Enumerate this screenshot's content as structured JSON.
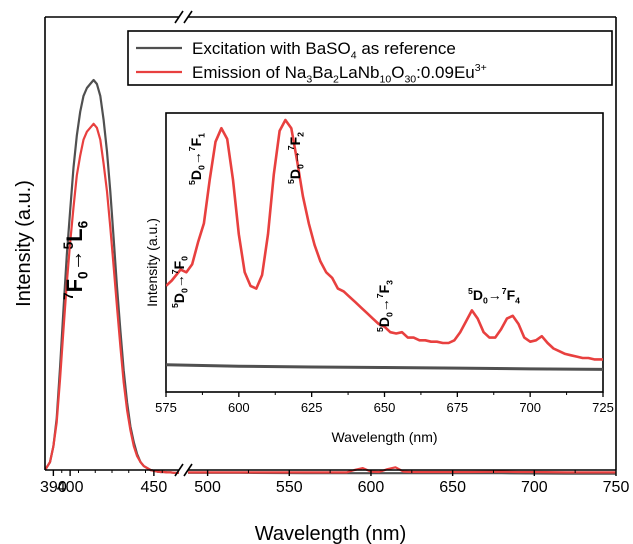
{
  "chart_data": [
    {
      "type": "line",
      "xlabel": "Wavelength (nm)",
      "ylabel": "Intensity (a.u.)",
      "x_tick_labels_left": [
        "390",
        "400",
        "450"
      ],
      "x_tick_labels_right": [
        "500",
        "550",
        "600",
        "650",
        "700",
        "750"
      ],
      "xlim_left": [
        385,
        465
      ],
      "xlim_right": [
        488,
        750
      ],
      "axis_break": true,
      "legend": {
        "placement": "top-right",
        "entries": [
          {
            "text": "Excitation with BaSO",
            "sub": "4",
            "tail": " as reference",
            "color": "#505050"
          },
          {
            "parts": [
              "Emission of Na",
              "3",
              "Ba",
              "2",
              "LaNb",
              "10",
              "O",
              "30",
              ":0.09Eu",
              "3+"
            ],
            "color": "#e8403f"
          }
        ]
      },
      "annotation": {
        "main": "7F0→5L6",
        "parts": [
          "7",
          "F",
          "0",
          "→",
          "5",
          "L",
          "6"
        ]
      },
      "series": [
        {
          "color": "#505050",
          "x": [
            385,
            388,
            390,
            392,
            394,
            396,
            398,
            400,
            402,
            404,
            406,
            408,
            410,
            412,
            414,
            416,
            418,
            420,
            422,
            424,
            426,
            428,
            430,
            432,
            434,
            436,
            438,
            440,
            442,
            444,
            446,
            448,
            450,
            452,
            454,
            456,
            458,
            460,
            462,
            465
          ],
          "y": [
            0.02,
            0.04,
            0.08,
            0.15,
            0.28,
            0.42,
            0.56,
            0.67,
            0.78,
            0.86,
            0.92,
            0.96,
            0.98,
            0.99,
            1.0,
            0.99,
            0.96,
            0.9,
            0.82,
            0.72,
            0.6,
            0.48,
            0.37,
            0.27,
            0.19,
            0.13,
            0.09,
            0.06,
            0.04,
            0.03,
            0.025,
            0.02,
            0.018,
            0.016,
            0.015,
            0.015,
            0.014,
            0.014,
            0.013,
            0.013
          ]
        },
        {
          "color": "#e8403f",
          "x": [
            385,
            388,
            390,
            392,
            394,
            396,
            398,
            400,
            402,
            404,
            406,
            408,
            410,
            412,
            414,
            416,
            418,
            420,
            422,
            424,
            426,
            428,
            430,
            432,
            434,
            436,
            438,
            440,
            442,
            444,
            446,
            448,
            450,
            452,
            454,
            456,
            458,
            460,
            462,
            465
          ],
          "y": [
            0.02,
            0.04,
            0.08,
            0.14,
            0.25,
            0.37,
            0.49,
            0.59,
            0.68,
            0.76,
            0.81,
            0.85,
            0.87,
            0.88,
            0.89,
            0.88,
            0.85,
            0.79,
            0.72,
            0.63,
            0.53,
            0.43,
            0.33,
            0.24,
            0.17,
            0.12,
            0.08,
            0.055,
            0.04,
            0.03,
            0.025,
            0.02,
            0.018,
            0.016,
            0.015,
            0.015,
            0.014,
            0.014,
            0.013,
            0.013
          ]
        },
        {
          "color": "#505050",
          "x": [
            488,
            520,
            560,
            600,
            640,
            680,
            720,
            750
          ],
          "y": [
            0.013,
            0.013,
            0.012,
            0.012,
            0.012,
            0.012,
            0.011,
            0.011
          ]
        },
        {
          "color": "#e8403f",
          "x": [
            488,
            520,
            560,
            585,
            590,
            595,
            600,
            605,
            610,
            615,
            620,
            625,
            640,
            660,
            680,
            690,
            700,
            720,
            750
          ],
          "y": [
            0.014,
            0.014,
            0.014,
            0.014,
            0.02,
            0.025,
            0.016,
            0.015,
            0.022,
            0.027,
            0.016,
            0.015,
            0.015,
            0.015,
            0.016,
            0.015,
            0.015,
            0.014,
            0.014
          ]
        }
      ]
    },
    {
      "type": "line",
      "placement": "inset",
      "xlabel": "Wavelength (nm)",
      "ylabel": "Intensity (a.u.)",
      "xlim": [
        575,
        725
      ],
      "x_tick_labels": [
        "575",
        "600",
        "625",
        "650",
        "675",
        "700",
        "725"
      ],
      "annotations": [
        {
          "parts": [
            "5",
            "D",
            "0",
            "→",
            "7",
            "F",
            "0"
          ],
          "x": 580,
          "y": 0.45,
          "rotate": -90
        },
        {
          "parts": [
            "5",
            "D",
            "0",
            "→",
            "7",
            "F",
            "1"
          ],
          "x": 591,
          "y": 0.78,
          "rotate": -90
        },
        {
          "parts": [
            "5",
            "D",
            "0",
            "→",
            "7",
            "F",
            "2"
          ],
          "x": 620,
          "y": 0.82,
          "rotate": -90
        },
        {
          "parts": [
            "5",
            "D",
            "0",
            "→",
            "7",
            "F",
            "3"
          ],
          "x": 651,
          "y": 0.24,
          "rotate": -90
        },
        {
          "parts": [
            "5",
            "D",
            "0",
            "→",
            "7",
            "F",
            "4"
          ],
          "x": 691,
          "y": 0.36,
          "rotate": 0
        }
      ],
      "series": [
        {
          "color": "#505050",
          "x": [
            575,
            600,
            625,
            650,
            675,
            700,
            725
          ],
          "y": [
            0.1,
            0.095,
            0.092,
            0.09,
            0.088,
            0.085,
            0.083
          ]
        },
        {
          "color": "#e8403f",
          "x": [
            575,
            577,
            580,
            582,
            584,
            586,
            588,
            590,
            592,
            594,
            596,
            598,
            600,
            602,
            604,
            606,
            608,
            610,
            612,
            614,
            616,
            618,
            620,
            622,
            624,
            626,
            628,
            630,
            632,
            634,
            636,
            638,
            640,
            642,
            644,
            646,
            648,
            650,
            652,
            654,
            656,
            658,
            660,
            662,
            664,
            666,
            668,
            670,
            672,
            674,
            676,
            678,
            680,
            682,
            684,
            686,
            688,
            690,
            692,
            694,
            696,
            698,
            700,
            702,
            704,
            706,
            708,
            710,
            712,
            714,
            716,
            718,
            720,
            722,
            725
          ],
          "y": [
            0.39,
            0.41,
            0.45,
            0.44,
            0.47,
            0.55,
            0.62,
            0.78,
            0.92,
            0.97,
            0.93,
            0.78,
            0.58,
            0.44,
            0.39,
            0.38,
            0.43,
            0.58,
            0.8,
            0.96,
            1.0,
            0.97,
            0.85,
            0.72,
            0.62,
            0.54,
            0.48,
            0.44,
            0.42,
            0.38,
            0.37,
            0.35,
            0.33,
            0.31,
            0.29,
            0.27,
            0.25,
            0.24,
            0.22,
            0.215,
            0.22,
            0.2,
            0.2,
            0.19,
            0.19,
            0.185,
            0.185,
            0.18,
            0.18,
            0.19,
            0.22,
            0.26,
            0.3,
            0.27,
            0.22,
            0.2,
            0.2,
            0.23,
            0.27,
            0.28,
            0.25,
            0.2,
            0.185,
            0.19,
            0.205,
            0.18,
            0.16,
            0.15,
            0.14,
            0.135,
            0.13,
            0.125,
            0.125,
            0.12,
            0.12
          ]
        }
      ]
    }
  ]
}
